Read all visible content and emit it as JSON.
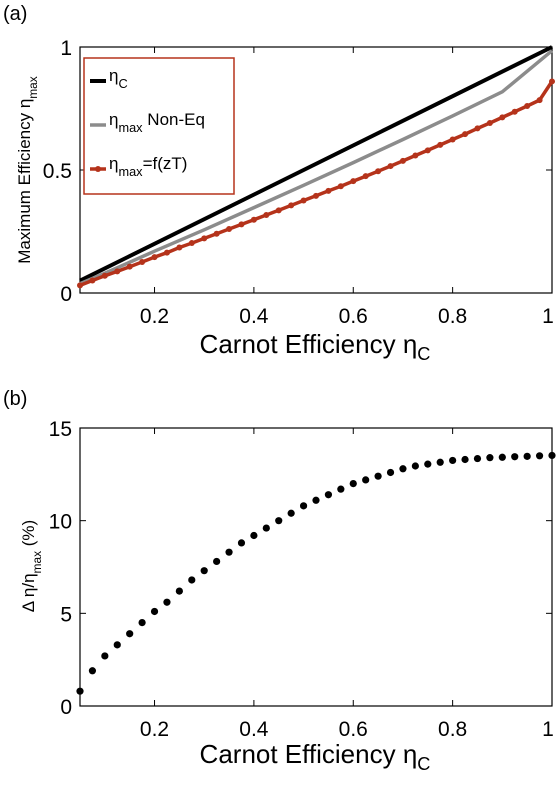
{
  "chart_data": [
    {
      "panel_label": "(a)",
      "type": "line",
      "xlabel": "Carnot Efficiency η",
      "xlabel_sub": "C",
      "ylabel": "Maximum Efficiency η",
      "ylabel_sub": "max",
      "xlim": [
        0.05,
        1.0
      ],
      "ylim": [
        0,
        1
      ],
      "xticks": [
        "0.2",
        "0.4",
        "0.6",
        "0.8",
        "1"
      ],
      "yticks": [
        "0",
        "0.5",
        "1"
      ],
      "legend_position": "top-left",
      "series": [
        {
          "name": "η",
          "name_sub": "C",
          "name_suffix": "",
          "color": "#000000",
          "marker": "none",
          "x": [
            0.05,
            1.0
          ],
          "y": [
            0.05,
            1.0
          ]
        },
        {
          "name": "η",
          "name_sub": "max",
          "name_suffix": " Non-Eq",
          "color": "#8c8c8c",
          "marker": "none",
          "x": [
            0.05,
            0.1,
            0.2,
            0.3,
            0.4,
            0.5,
            0.6,
            0.7,
            0.8,
            0.9,
            1.0
          ],
          "y": [
            0.038,
            0.08,
            0.17,
            0.257,
            0.347,
            0.438,
            0.53,
            0.624,
            0.72,
            0.818,
            0.985
          ]
        },
        {
          "name": "η",
          "name_sub": "max",
          "name_suffix": "=f(zT)",
          "color": "#b5331b",
          "marker": "dot",
          "x": [
            0.05,
            0.075,
            0.1,
            0.125,
            0.15,
            0.175,
            0.2,
            0.225,
            0.25,
            0.275,
            0.3,
            0.325,
            0.35,
            0.375,
            0.4,
            0.425,
            0.45,
            0.475,
            0.5,
            0.525,
            0.55,
            0.575,
            0.6,
            0.625,
            0.65,
            0.675,
            0.7,
            0.725,
            0.75,
            0.775,
            0.8,
            0.825,
            0.85,
            0.875,
            0.9,
            0.925,
            0.95,
            0.975,
            1.0
          ],
          "y": [
            0.031,
            0.051,
            0.07,
            0.088,
            0.107,
            0.126,
            0.146,
            0.164,
            0.185,
            0.203,
            0.222,
            0.241,
            0.26,
            0.279,
            0.298,
            0.317,
            0.336,
            0.356,
            0.376,
            0.395,
            0.415,
            0.434,
            0.455,
            0.475,
            0.495,
            0.516,
            0.537,
            0.559,
            0.58,
            0.602,
            0.624,
            0.646,
            0.669,
            0.691,
            0.714,
            0.737,
            0.76,
            0.784,
            0.86
          ]
        }
      ]
    },
    {
      "panel_label": "(b)",
      "type": "scatter",
      "xlabel": "Carnot Efficiency η",
      "xlabel_sub": "C",
      "ylabel": "Δ η/η",
      "ylabel_sub": "max",
      "ylabel_suffix": "  (%)",
      "xlim": [
        0.05,
        1.0
      ],
      "ylim": [
        0,
        15
      ],
      "xticks": [
        "0.2",
        "0.4",
        "0.6",
        "0.8",
        "1"
      ],
      "yticks": [
        "0",
        "5",
        "10",
        "15"
      ],
      "series": [
        {
          "color": "#000000",
          "x": [
            0.05,
            0.075,
            0.1,
            0.125,
            0.15,
            0.175,
            0.2,
            0.225,
            0.25,
            0.275,
            0.3,
            0.325,
            0.35,
            0.375,
            0.4,
            0.425,
            0.45,
            0.475,
            0.5,
            0.525,
            0.55,
            0.575,
            0.6,
            0.625,
            0.65,
            0.675,
            0.7,
            0.725,
            0.75,
            0.775,
            0.8,
            0.825,
            0.85,
            0.875,
            0.9,
            0.925,
            0.95,
            0.975,
            1.0
          ],
          "y": [
            0.8,
            1.9,
            2.7,
            3.3,
            3.9,
            4.5,
            5.1,
            5.6,
            6.2,
            6.8,
            7.3,
            7.8,
            8.3,
            8.8,
            9.2,
            9.6,
            10.0,
            10.4,
            10.8,
            11.1,
            11.4,
            11.7,
            12.0,
            12.2,
            12.4,
            12.6,
            12.8,
            12.95,
            13.05,
            13.15,
            13.25,
            13.3,
            13.35,
            13.4,
            13.42,
            13.45,
            13.47,
            13.5,
            13.52
          ]
        }
      ]
    }
  ]
}
